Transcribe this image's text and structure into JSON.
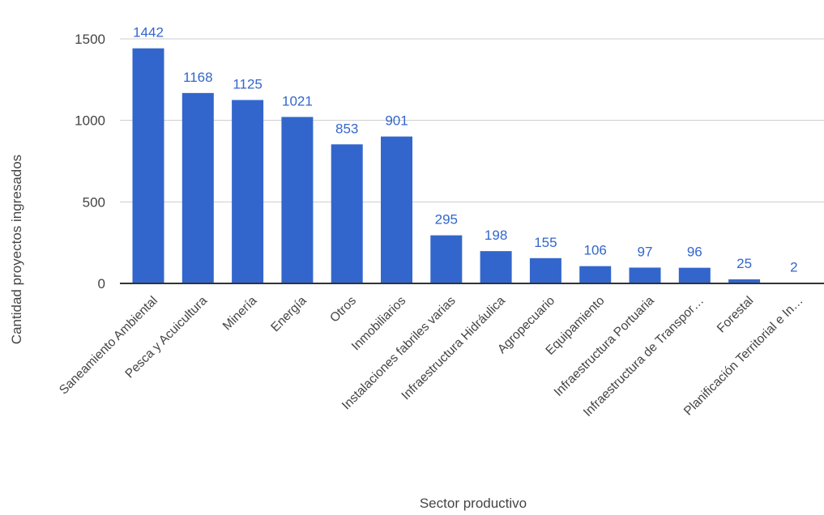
{
  "chart_data": {
    "type": "bar",
    "title": "",
    "xlabel": "Sector productivo",
    "ylabel": "Cantidad proyectos ingresados",
    "ylim": [
      0,
      1500
    ],
    "yticks": [
      0,
      500,
      1000,
      1500
    ],
    "grid": true,
    "legend": "none",
    "colors": {
      "bar": "#3366cc",
      "data_label": "#3366cc",
      "grid": "#cccccc",
      "axis": "#333333",
      "text": "#444444"
    },
    "categories": [
      "Saneamiento Ambiental",
      "Pesca y Acuicultura",
      "Minería",
      "Energía",
      "Otros",
      "Inmobiliarios",
      "Instalaciones fabriles varias",
      "Infraestructura Hidráulica",
      "Agropecuario",
      "Equipamiento",
      "Infraestructura Portuaria",
      "Infraestructura de Transpor…",
      "Forestal",
      "Planificación Territorial e In…"
    ],
    "values": [
      1442,
      1168,
      1125,
      1021,
      853,
      901,
      295,
      198,
      155,
      106,
      97,
      96,
      25,
      2
    ]
  }
}
